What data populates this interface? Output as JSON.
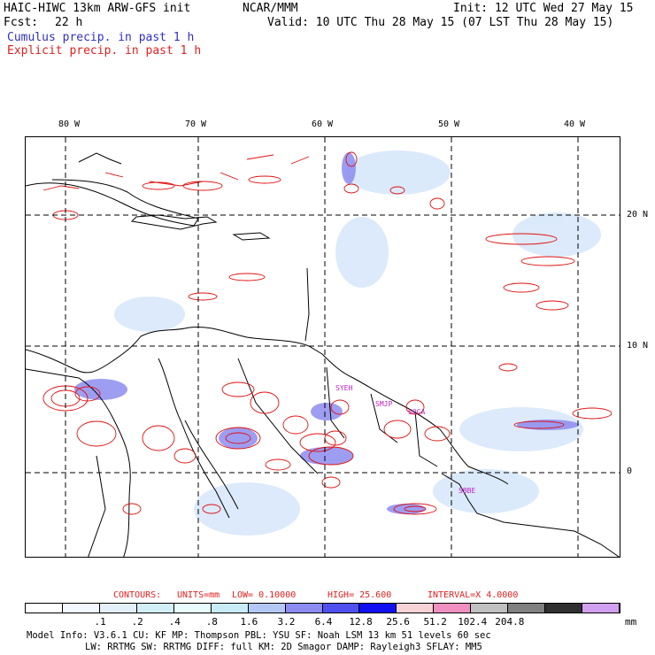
{
  "header": {
    "model": "HAIC-HIWC 13km ARW-GFS init",
    "org": "NCAR/MMM",
    "init": "Init: 12 UTC Wed 27 May 15",
    "fcst_label": "Fcst:",
    "fcst_value": "22 h",
    "valid": "Valid: 10 UTC Thu 28 May 15 (07 LST Thu 28 May 15)",
    "legend_cumulus": "Cumulus precip. in past 1 h",
    "legend_explicit": "Explicit precip. in past 1 h"
  },
  "colors": {
    "cumulus_text": "#3030c0",
    "explicit_text": "#e02020",
    "contour": "#e01010",
    "coastline": "#000000",
    "site_label": "#c020c0"
  },
  "map": {
    "longitude_labels": [
      "80 W",
      "70 W",
      "60 W",
      "50 W",
      "40 W"
    ],
    "latitude_labels": [
      "20 N",
      "10 N",
      "0"
    ],
    "sites": [
      "SYEH",
      "SMJP",
      "SOCA",
      "SBBE"
    ]
  },
  "contour_info": {
    "label": "CONTOURS:",
    "units": "UNITS=mm",
    "low": "LOW= 0.10000",
    "high": "HIGH= 25.600",
    "interval": "INTERVAL=X 4.0000"
  },
  "colorbar": {
    "colors": [
      "#ffffff",
      "#f2f8fd",
      "#e3f0fa",
      "#d2eef7",
      "#e8fcfd",
      "#c8ecf5",
      "#b4c8f5",
      "#8c8cf0",
      "#5050f0",
      "#1010f0",
      "#f6d2d6",
      "#f090c0",
      "#c0c0c0",
      "#808080",
      "#303030",
      "#d2a0f0"
    ],
    "ticks": [
      ".1",
      ".2",
      ".4",
      ".8",
      "1.6",
      "3.2",
      "6.4",
      "12.8",
      "25.6",
      "51.2",
      "102.4",
      "204.8"
    ],
    "unit": "mm"
  },
  "model_info": {
    "line1": "Model Info: V3.6.1    CU: KF     MP: Thompson    PBL: YSU      SF: Noah LSM    13 km   51 levels  60 sec",
    "line2": "LW: RRTMG   SW: RRTMG  DIFF: full   KM: 2D Smagor DAMP: Rayleigh3  SFLAY: MM5"
  }
}
